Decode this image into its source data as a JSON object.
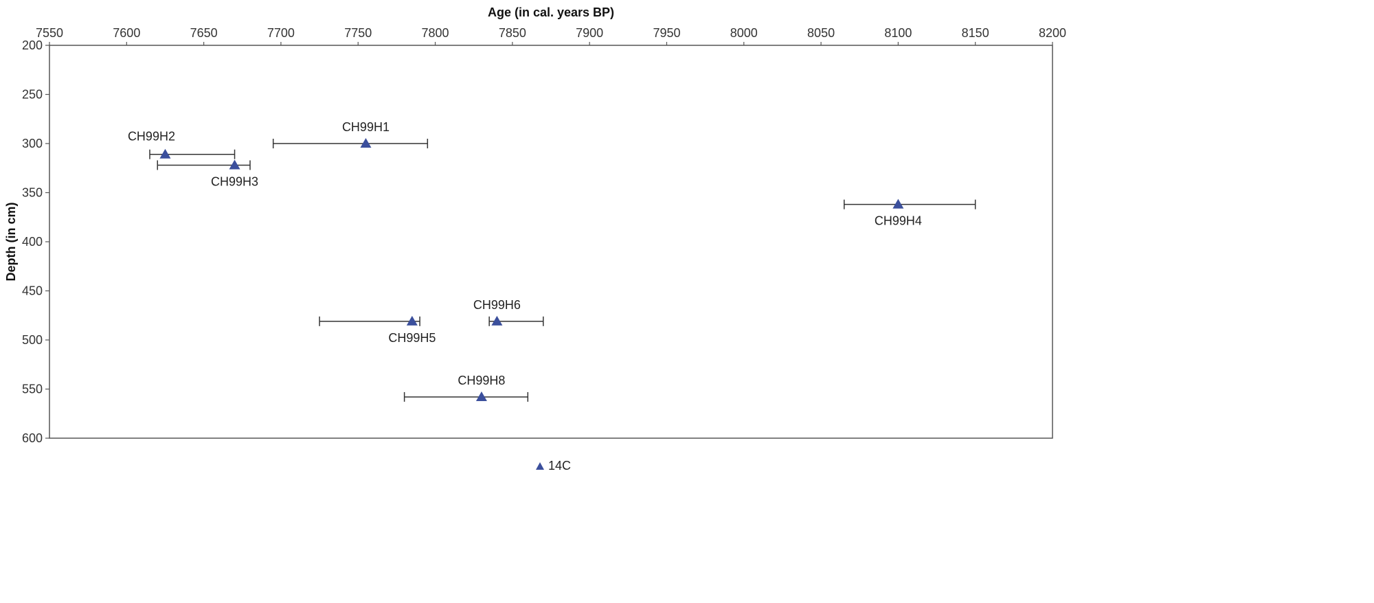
{
  "chart_data": {
    "type": "scatter",
    "xlabel": "Age (in cal. years BP)",
    "ylabel": "Depth (in cm)",
    "xlim": [
      7550,
      8200
    ],
    "ylim": [
      200,
      600
    ],
    "y_reversed": true,
    "x_axis_position": "top",
    "xticks": [
      7550,
      7600,
      7650,
      7700,
      7750,
      7800,
      7850,
      7900,
      7950,
      8000,
      8050,
      8100,
      8150,
      8200
    ],
    "yticks": [
      200,
      250,
      300,
      350,
      400,
      450,
      500,
      550,
      600
    ],
    "grid": false,
    "legend_position": "bottom-center",
    "marker": "triangle",
    "marker_color": "#3b4f9c",
    "series": [
      {
        "name": "14C",
        "points": [
          {
            "label": "CH99H1",
            "age": 7755,
            "depth": 300,
            "err_low": 7695,
            "err_high": 7795,
            "label_pos": "above"
          },
          {
            "label": "CH99H2",
            "age": 7625,
            "depth": 311,
            "err_low": 7615,
            "err_high": 7670,
            "label_pos": "above-left"
          },
          {
            "label": "CH99H3",
            "age": 7670,
            "depth": 322,
            "err_low": 7620,
            "err_high": 7680,
            "label_pos": "below"
          },
          {
            "label": "CH99H4",
            "age": 8100,
            "depth": 362,
            "err_low": 8065,
            "err_high": 8150,
            "label_pos": "below"
          },
          {
            "label": "CH99H5",
            "age": 7785,
            "depth": 481,
            "err_low": 7725,
            "err_high": 7790,
            "label_pos": "below"
          },
          {
            "label": "CH99H6",
            "age": 7840,
            "depth": 481,
            "err_low": 7835,
            "err_high": 7870,
            "label_pos": "above"
          },
          {
            "label": "CH99H8",
            "age": 7830,
            "depth": 558,
            "err_low": 7780,
            "err_high": 7860,
            "label_pos": "above"
          }
        ]
      }
    ]
  }
}
